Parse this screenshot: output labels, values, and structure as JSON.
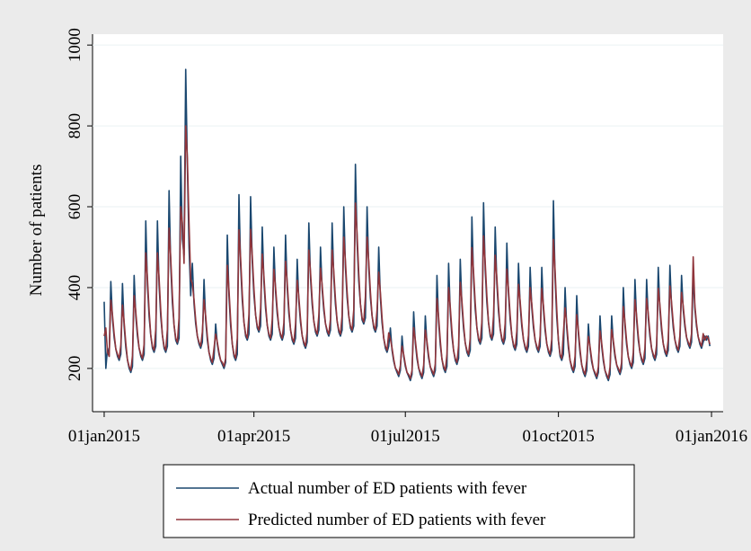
{
  "chart_data": {
    "type": "line",
    "y_label": "Number of patients",
    "xlim": [
      "2014-12-25",
      "2016-01-08"
    ],
    "xticks": [
      {
        "value": "2015-01-01",
        "label": "01jan2015"
      },
      {
        "value": "2015-04-01",
        "label": "01apr2015"
      },
      {
        "value": "2015-07-01",
        "label": "01jul2015"
      },
      {
        "value": "2015-10-01",
        "label": "01oct2015"
      },
      {
        "value": "2016-01-01",
        "label": "01jan2016"
      }
    ],
    "ylim": [
      93,
      1027
    ],
    "yticks": [
      200,
      400,
      600,
      800,
      1000
    ],
    "grid": true,
    "legend": "bottom",
    "x": [
      "2015-01-01",
      "2015-01-02",
      "2015-01-03",
      "2015-01-04",
      "2015-01-05",
      "2015-01-06",
      "2015-01-07",
      "2015-01-08",
      "2015-01-09",
      "2015-01-10",
      "2015-01-11",
      "2015-01-12",
      "2015-01-13",
      "2015-01-14",
      "2015-01-15",
      "2015-01-16",
      "2015-01-17",
      "2015-01-18",
      "2015-01-19",
      "2015-01-20",
      "2015-01-21",
      "2015-01-22",
      "2015-01-23",
      "2015-01-24",
      "2015-01-25",
      "2015-01-26",
      "2015-01-27",
      "2015-01-28",
      "2015-01-29",
      "2015-01-30",
      "2015-01-31",
      "2015-02-01",
      "2015-02-02",
      "2015-02-03",
      "2015-02-04",
      "2015-02-05",
      "2015-02-06",
      "2015-02-07",
      "2015-02-08",
      "2015-02-09",
      "2015-02-10",
      "2015-02-11",
      "2015-02-12",
      "2015-02-13",
      "2015-02-14",
      "2015-02-15",
      "2015-02-16",
      "2015-02-17",
      "2015-02-18",
      "2015-02-19",
      "2015-02-20",
      "2015-02-21",
      "2015-02-22",
      "2015-02-23",
      "2015-02-24",
      "2015-02-25",
      "2015-02-26",
      "2015-02-27",
      "2015-02-28",
      "2015-03-01",
      "2015-03-02",
      "2015-03-03",
      "2015-03-04",
      "2015-03-05",
      "2015-03-06",
      "2015-03-07",
      "2015-03-08",
      "2015-03-09",
      "2015-03-10",
      "2015-03-11",
      "2015-03-12",
      "2015-03-13",
      "2015-03-14",
      "2015-03-15",
      "2015-03-16",
      "2015-03-17",
      "2015-03-18",
      "2015-03-19",
      "2015-03-20",
      "2015-03-21",
      "2015-03-22",
      "2015-03-23",
      "2015-03-24",
      "2015-03-25",
      "2015-03-26",
      "2015-03-27",
      "2015-03-28",
      "2015-03-29",
      "2015-03-30",
      "2015-03-31",
      "2015-04-01",
      "2015-04-02",
      "2015-04-03",
      "2015-04-04",
      "2015-04-05",
      "2015-04-06",
      "2015-04-07",
      "2015-04-08",
      "2015-04-09",
      "2015-04-10",
      "2015-04-11",
      "2015-04-12",
      "2015-04-13",
      "2015-04-14",
      "2015-04-15",
      "2015-04-16",
      "2015-04-17",
      "2015-04-18",
      "2015-04-19",
      "2015-04-20",
      "2015-04-21",
      "2015-04-22",
      "2015-04-23",
      "2015-04-24",
      "2015-04-25",
      "2015-04-26",
      "2015-04-27",
      "2015-04-28",
      "2015-04-29",
      "2015-04-30",
      "2015-05-01",
      "2015-05-02",
      "2015-05-03",
      "2015-05-04",
      "2015-05-05",
      "2015-05-06",
      "2015-05-07",
      "2015-05-08",
      "2015-05-09",
      "2015-05-10",
      "2015-05-11",
      "2015-05-12",
      "2015-05-13",
      "2015-05-14",
      "2015-05-15",
      "2015-05-16",
      "2015-05-17",
      "2015-05-18",
      "2015-05-19",
      "2015-05-20",
      "2015-05-21",
      "2015-05-22",
      "2015-05-23",
      "2015-05-24",
      "2015-05-25",
      "2015-05-26",
      "2015-05-27",
      "2015-05-28",
      "2015-05-29",
      "2015-05-30",
      "2015-05-31",
      "2015-06-01",
      "2015-06-02",
      "2015-06-03",
      "2015-06-04",
      "2015-06-05",
      "2015-06-06",
      "2015-06-07",
      "2015-06-08",
      "2015-06-09",
      "2015-06-10",
      "2015-06-11",
      "2015-06-12",
      "2015-06-13",
      "2015-06-14",
      "2015-06-15",
      "2015-06-16",
      "2015-06-17",
      "2015-06-18",
      "2015-06-19",
      "2015-06-20",
      "2015-06-21",
      "2015-06-22",
      "2015-06-23",
      "2015-06-24",
      "2015-06-25",
      "2015-06-26",
      "2015-06-27",
      "2015-06-28",
      "2015-06-29",
      "2015-06-30",
      "2015-07-01",
      "2015-07-02",
      "2015-07-03",
      "2015-07-04",
      "2015-07-05",
      "2015-07-06",
      "2015-07-07",
      "2015-07-08",
      "2015-07-09",
      "2015-07-10",
      "2015-07-11",
      "2015-07-12",
      "2015-07-13",
      "2015-07-14",
      "2015-07-15",
      "2015-07-16",
      "2015-07-17",
      "2015-07-18",
      "2015-07-19",
      "2015-07-20",
      "2015-07-21",
      "2015-07-22",
      "2015-07-23",
      "2015-07-24",
      "2015-07-25",
      "2015-07-26",
      "2015-07-27",
      "2015-07-28",
      "2015-07-29",
      "2015-07-30",
      "2015-07-31",
      "2015-08-01",
      "2015-08-02",
      "2015-08-03",
      "2015-08-04",
      "2015-08-05",
      "2015-08-06",
      "2015-08-07",
      "2015-08-08",
      "2015-08-09",
      "2015-08-10",
      "2015-08-11",
      "2015-08-12",
      "2015-08-13",
      "2015-08-14",
      "2015-08-15",
      "2015-08-16",
      "2015-08-17",
      "2015-08-18",
      "2015-08-19",
      "2015-08-20",
      "2015-08-21",
      "2015-08-22",
      "2015-08-23",
      "2015-08-24",
      "2015-08-25",
      "2015-08-26",
      "2015-08-27",
      "2015-08-28",
      "2015-08-29",
      "2015-08-30",
      "2015-08-31",
      "2015-09-01",
      "2015-09-02",
      "2015-09-03",
      "2015-09-04",
      "2015-09-05",
      "2015-09-06",
      "2015-09-07",
      "2015-09-08",
      "2015-09-09",
      "2015-09-10",
      "2015-09-11",
      "2015-09-12",
      "2015-09-13",
      "2015-09-14",
      "2015-09-15",
      "2015-09-16",
      "2015-09-17",
      "2015-09-18",
      "2015-09-19",
      "2015-09-20",
      "2015-09-21",
      "2015-09-22",
      "2015-09-23",
      "2015-09-24",
      "2015-09-25",
      "2015-09-26",
      "2015-09-27",
      "2015-09-28",
      "2015-09-29",
      "2015-09-30",
      "2015-10-01",
      "2015-10-02",
      "2015-10-03",
      "2015-10-04",
      "2015-10-05",
      "2015-10-06",
      "2015-10-07",
      "2015-10-08",
      "2015-10-09",
      "2015-10-10",
      "2015-10-11",
      "2015-10-12",
      "2015-10-13",
      "2015-10-14",
      "2015-10-15",
      "2015-10-16",
      "2015-10-17",
      "2015-10-18",
      "2015-10-19",
      "2015-10-20",
      "2015-10-21",
      "2015-10-22",
      "2015-10-23",
      "2015-10-24",
      "2015-10-25",
      "2015-10-26",
      "2015-10-27",
      "2015-10-28",
      "2015-10-29",
      "2015-10-30",
      "2015-10-31",
      "2015-11-01",
      "2015-11-02",
      "2015-11-03",
      "2015-11-04",
      "2015-11-05",
      "2015-11-06",
      "2015-11-07",
      "2015-11-08",
      "2015-11-09",
      "2015-11-10",
      "2015-11-11",
      "2015-11-12",
      "2015-11-13",
      "2015-11-14",
      "2015-11-15",
      "2015-11-16",
      "2015-11-17",
      "2015-11-18",
      "2015-11-19",
      "2015-11-20",
      "2015-11-21",
      "2015-11-22",
      "2015-11-23",
      "2015-11-24",
      "2015-11-25",
      "2015-11-26",
      "2015-11-27",
      "2015-11-28",
      "2015-11-29",
      "2015-11-30",
      "2015-12-01",
      "2015-12-02",
      "2015-12-03",
      "2015-12-04",
      "2015-12-05",
      "2015-12-06",
      "2015-12-07",
      "2015-12-08",
      "2015-12-09",
      "2015-12-10",
      "2015-12-11",
      "2015-12-12",
      "2015-12-13",
      "2015-12-14",
      "2015-12-15",
      "2015-12-16",
      "2015-12-17",
      "2015-12-18",
      "2015-12-19",
      "2015-12-20",
      "2015-12-21",
      "2015-12-22",
      "2015-12-23",
      "2015-12-24",
      "2015-12-25",
      "2015-12-26",
      "2015-12-27",
      "2015-12-28",
      "2015-12-29",
      "2015-12-30",
      "2015-12-31"
    ],
    "series": [
      {
        "name": "Actual number of ED patients with fever",
        "color": "#1a476f",
        "values": [
          365,
          200,
          250,
          230,
          415,
          322,
          276,
          248,
          230,
          220,
          235,
          410,
          305,
          252,
          221,
          200,
          190,
          205,
          430,
          330,
          280,
          250,
          230,
          220,
          235,
          565,
          407,
          329,
          282,
          250,
          240,
          255,
          565,
          407,
          329,
          282,
          250,
          240,
          255,
          640,
          455,
          362,
          307,
          270,
          260,
          275,
          725,
          520,
          480,
          940,
          700,
          500,
          380,
          460,
          360,
          310,
          280,
          260,
          250,
          265,
          420,
          320,
          270,
          240,
          220,
          210,
          225,
          310,
          260,
          235,
          220,
          210,
          200,
          215,
          530,
          380,
          305,
          260,
          230,
          220,
          235,
          630,
          455,
          368,
          315,
          280,
          270,
          285,
          625,
          463,
          381,
          333,
          300,
          290,
          305,
          550,
          415,
          348,
          307,
          280,
          270,
          285,
          500,
          390,
          335,
          302,
          280,
          270,
          285,
          530,
          400,
          335,
          296,
          270,
          260,
          275,
          470,
          365,
          313,
          281,
          260,
          250,
          265,
          560,
          425,
          358,
          317,
          290,
          280,
          295,
          500,
          395,
          343,
          311,
          290,
          280,
          295,
          560,
          425,
          358,
          317,
          290,
          280,
          295,
          600,
          450,
          375,
          330,
          300,
          290,
          305,
          705,
          513,
          416,
          359,
          320,
          310,
          325,
          600,
          450,
          375,
          330,
          300,
          290,
          305,
          500,
          375,
          313,
          275,
          250,
          240,
          255,
          300,
          245,
          218,
          201,
          190,
          180,
          195,
          280,
          230,
          205,
          190,
          180,
          170,
          185,
          340,
          263,
          224,
          201,
          185,
          175,
          190,
          330,
          260,
          225,
          204,
          190,
          180,
          195,
          430,
          315,
          258,
          223,
          200,
          190,
          205,
          460,
          340,
          280,
          244,
          220,
          210,
          225,
          470,
          355,
          298,
          263,
          240,
          230,
          245,
          575,
          423,
          346,
          301,
          270,
          260,
          275,
          610,
          445,
          363,
          313,
          280,
          270,
          285,
          550,
          410,
          340,
          298,
          270,
          260,
          275,
          510,
          383,
          319,
          281,
          255,
          245,
          260,
          460,
          355,
          303,
          271,
          250,
          240,
          255,
          450,
          350,
          300,
          270,
          250,
          240,
          255,
          450,
          345,
          293,
          261,
          240,
          230,
          245,
          615,
          423,
          326,
          269,
          230,
          220,
          235,
          400,
          300,
          250,
          220,
          200,
          190,
          205,
          380,
          285,
          238,
          209,
          190,
          180,
          195,
          310,
          248,
          216,
          198,
          185,
          175,
          190,
          330,
          255,
          218,
          195,
          180,
          170,
          185,
          330,
          263,
          229,
          209,
          195,
          185,
          200,
          400,
          305,
          258,
          229,
          210,
          200,
          215,
          420,
          320,
          270,
          240,
          220,
          210,
          225,
          420,
          325,
          278,
          249,
          230,
          220,
          235,
          450,
          345,
          293,
          261,
          240,
          230,
          245,
          455,
          353,
          301,
          271,
          250,
          240,
          255,
          430,
          345,
          303,
          277,
          260,
          250,
          265,
          435,
          348,
          304,
          278,
          260,
          250,
          265,
          280,
          270,
          280,
          255
        ]
      },
      {
        "name": "Predicted number of ED patients with fever",
        "color": "#90353b",
        "values": [
          280,
          300,
          240,
          230,
          369,
          332,
          285,
          248,
          235,
          225,
          258,
          357,
          315,
          263,
          221,
          205,
          195,
          231,
          380,
          340,
          290,
          250,
          235,
          225,
          260,
          486,
          423,
          344,
          282,
          255,
          245,
          297,
          486,
          423,
          344,
          282,
          255,
          245,
          297,
          547,
          473,
          381,
          307,
          275,
          265,
          325,
          600,
          560,
          460,
          800,
          720,
          560,
          420,
          410,
          370,
          320,
          280,
          265,
          255,
          290,
          370,
          330,
          280,
          240,
          225,
          215,
          250,
          285,
          265,
          240,
          220,
          215,
          205,
          225,
          455,
          395,
          320,
          260,
          235,
          225,
          275,
          543,
          473,
          385,
          315,
          285,
          275,
          333,
          544,
          479,
          398,
          333,
          305,
          295,
          349,
          483,
          429,
          361,
          307,
          285,
          275,
          321,
          445,
          401,
          346,
          302,
          285,
          275,
          313,
          465,
          413,
          348,
          296,
          275,
          265,
          309,
          418,
          376,
          323,
          281,
          265,
          255,
          292,
          493,
          439,
          371,
          317,
          295,
          285,
          331,
          448,
          406,
          353,
          311,
          295,
          285,
          322,
          493,
          439,
          371,
          317,
          295,
          285,
          331,
          525,
          465,
          390,
          330,
          305,
          295,
          345,
          609,
          532,
          436,
          359,
          325,
          315,
          378,
          525,
          465,
          390,
          330,
          305,
          295,
          345,
          438,
          388,
          325,
          275,
          255,
          245,
          288,
          273,
          251,
          223,
          201,
          195,
          185,
          207,
          255,
          235,
          210,
          190,
          185,
          175,
          195,
          301,
          270,
          232,
          201,
          190,
          180,
          208,
          295,
          267,
          232,
          204,
          195,
          185,
          211,
          373,
          327,
          269,
          223,
          205,
          195,
          235,
          400,
          352,
          292,
          244,
          225,
          215,
          256,
          413,
          367,
          309,
          263,
          245,
          235,
          275,
          499,
          438,
          362,
          301,
          275,
          265,
          316,
          528,
          462,
          379,
          313,
          285,
          275,
          330,
          480,
          424,
          354,
          298,
          275,
          265,
          312,
          446,
          395,
          332,
          281,
          260,
          250,
          293,
          408,
          366,
          313,
          271,
          255,
          245,
          282,
          400,
          360,
          310,
          270,
          255,
          245,
          280,
          398,
          356,
          303,
          261,
          245,
          235,
          272,
          519,
          442,
          346,
          269,
          235,
          225,
          288,
          350,
          310,
          260,
          220,
          205,
          195,
          230,
          333,
          295,
          247,
          209,
          195,
          185,
          219,
          279,
          254,
          223,
          198,
          190,
          180,
          204,
          293,
          263,
          225,
          195,
          185,
          175,
          203,
          296,
          269,
          236,
          209,
          200,
          190,
          215,
          353,
          315,
          267,
          229,
          215,
          205,
          239,
          370,
          330,
          280,
          240,
          225,
          215,
          250,
          373,
          335,
          287,
          249,
          235,
          225,
          259,
          398,
          356,
          303,
          261,
          245,
          235,
          272,
          404,
          363,
          312,
          271,
          255,
          245,
          281,
          388,
          354,
          311,
          277,
          265,
          255,
          286,
          476,
          356,
          311,
          278,
          265,
          255,
          286,
          270,
          280,
          275,
          260
        ]
      }
    ]
  }
}
